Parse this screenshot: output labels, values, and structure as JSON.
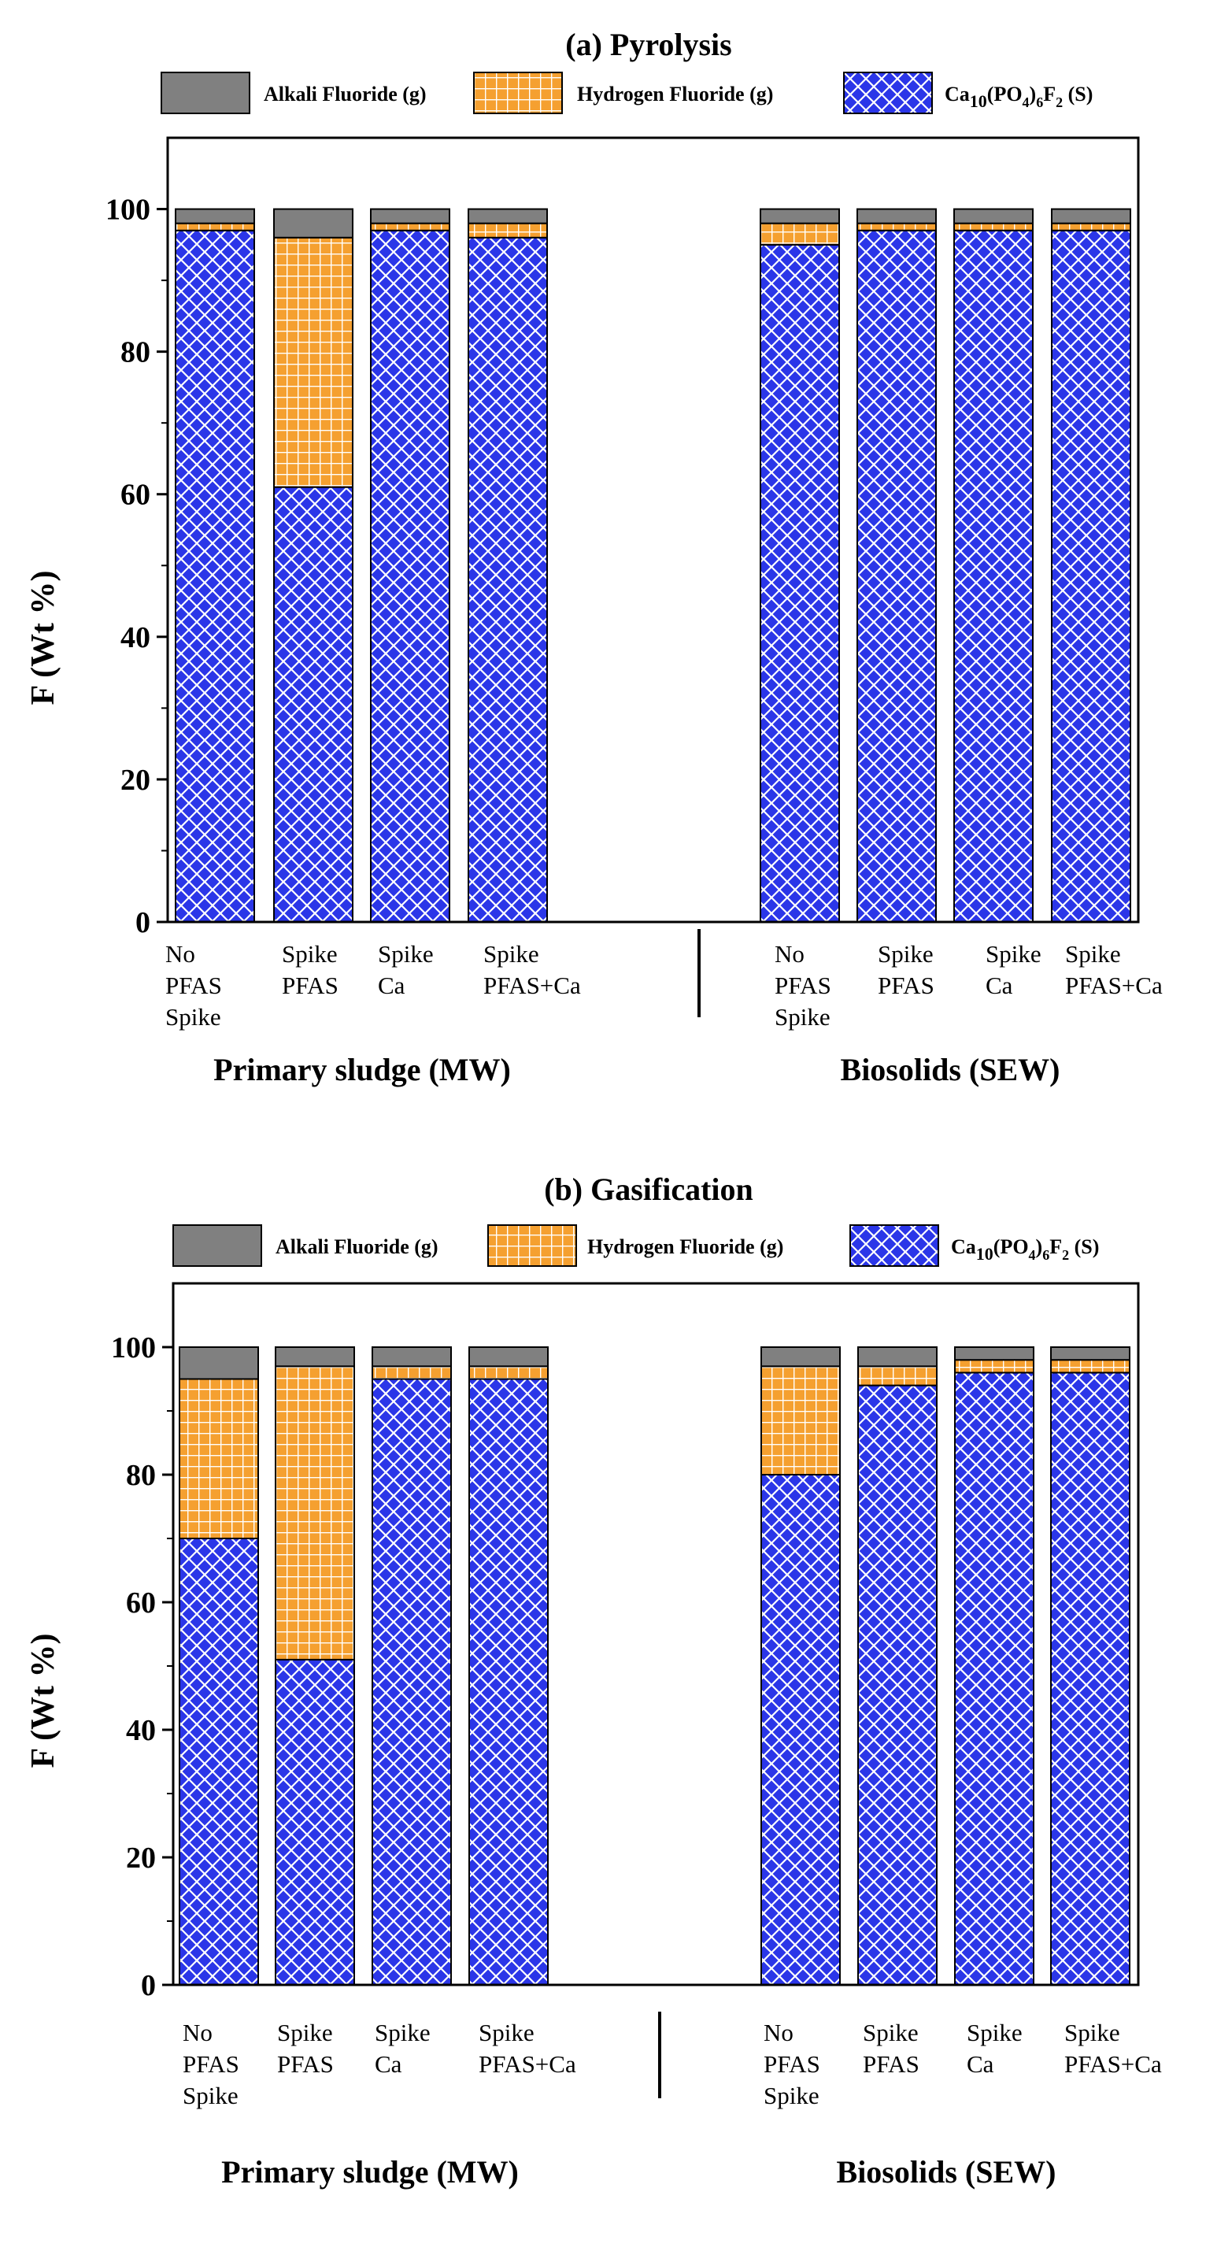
{
  "chart_data": [
    {
      "type": "bar",
      "stacked": true,
      "title": "(a) Pyrolysis",
      "xlabel": "",
      "ylabel": "F (Wt %)",
      "ylim": [
        0,
        110
      ],
      "yticks": [
        0,
        20,
        40,
        60,
        80,
        100
      ],
      "legend": [
        "Alkali Fluoride (g)",
        "Hydrogen Fluoride (g)",
        "Ca10(PO4)6F2 (S)"
      ],
      "groups": [
        {
          "label": "Primary sludge (MW)",
          "categories": [
            [
              "No",
              "PFAS",
              "Spike"
            ],
            [
              "Spike",
              "PFAS"
            ],
            [
              "Spike",
              "Ca"
            ],
            [
              "Spike",
              "PFAS+Ca"
            ]
          ]
        },
        {
          "label": "Biosolids (SEW)",
          "categories": [
            [
              "No",
              "PFAS",
              "Spike"
            ],
            [
              "Spike",
              "PFAS"
            ],
            [
              "Spike",
              "Ca"
            ],
            [
              "Spike",
              "PFAS+Ca"
            ]
          ]
        }
      ],
      "series": [
        {
          "name": "Ca10(PO4)6F2 (S)",
          "values": [
            97,
            61,
            97,
            96,
            95,
            97,
            97,
            97
          ]
        },
        {
          "name": "Hydrogen Fluoride (g)",
          "values": [
            1,
            35,
            1,
            2,
            3,
            1,
            1,
            1
          ]
        },
        {
          "name": "Alkali Fluoride (g)",
          "values": [
            2,
            4,
            2,
            2,
            2,
            2,
            2,
            2
          ]
        }
      ]
    },
    {
      "type": "bar",
      "stacked": true,
      "title": "(b) Gasification",
      "xlabel": "",
      "ylabel": "F (Wt %)",
      "ylim": [
        0,
        110
      ],
      "yticks": [
        0,
        20,
        40,
        60,
        80,
        100
      ],
      "legend": [
        "Alkali Fluoride (g)",
        "Hydrogen Fluoride (g)",
        "Ca10(PO4)6F2 (S)"
      ],
      "groups": [
        {
          "label": "Primary sludge (MW)",
          "categories": [
            [
              "No",
              "PFAS",
              "Spike"
            ],
            [
              "Spike",
              "PFAS"
            ],
            [
              "Spike",
              "Ca"
            ],
            [
              "Spike",
              "PFAS+Ca"
            ]
          ]
        },
        {
          "label": "Biosolids (SEW)",
          "categories": [
            [
              "No",
              "PFAS",
              "Spike"
            ],
            [
              "Spike",
              "PFAS"
            ],
            [
              "Spike",
              "Ca"
            ],
            [
              "Spike",
              "PFAS+Ca"
            ]
          ]
        }
      ],
      "series": [
        {
          "name": "Ca10(PO4)6F2 (S)",
          "values": [
            70,
            51,
            95,
            95,
            80,
            94,
            96,
            96
          ]
        },
        {
          "name": "Hydrogen Fluoride (g)",
          "values": [
            25,
            46,
            2,
            2,
            17,
            3,
            2,
            2
          ]
        },
        {
          "name": "Alkali Fluoride (g)",
          "values": [
            5,
            3,
            3,
            3,
            3,
            3,
            2,
            2
          ]
        }
      ]
    }
  ],
  "colors": {
    "alkali": "#808080",
    "hf": "#f5a030",
    "hf_grid": "#ffffff",
    "ca": "#2b36e8",
    "ca_hatch": "#ffffff"
  }
}
